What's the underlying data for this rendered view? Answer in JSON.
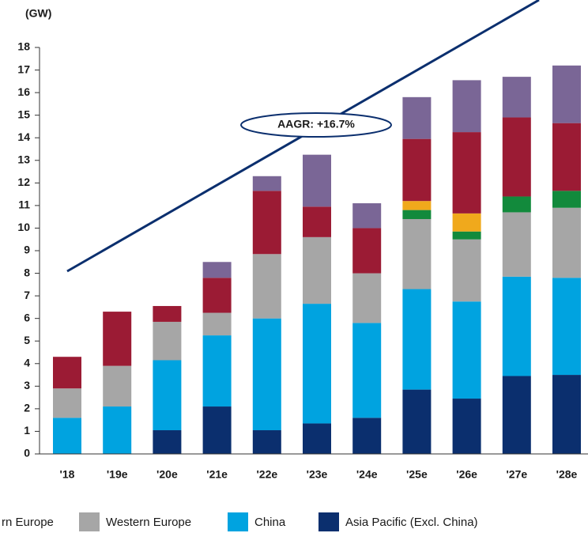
{
  "chart_data": {
    "type": "stacked_bar",
    "y_label": "(GW)",
    "annotation": "AAGR: +16.7%",
    "categories": [
      "'18",
      "'19e",
      "'20e",
      "'21e",
      "'22e",
      "'23e",
      "'24e",
      "'25e",
      "'26e",
      "'27e",
      "'28e"
    ],
    "series": [
      {
        "name": "Asia Pacific (Excl. China)",
        "color": "#0b2f6e",
        "values": [
          0,
          0,
          1.05,
          2.1,
          1.05,
          1.35,
          1.6,
          2.85,
          2.45,
          3.45,
          3.5
        ]
      },
      {
        "name": "China",
        "color": "#00a3e0",
        "values": [
          1.6,
          2.1,
          3.1,
          3.15,
          4.95,
          5.3,
          4.2,
          4.45,
          4.3,
          4.4,
          4.3
        ]
      },
      {
        "name": "Western Europe",
        "color": "#a6a6a6",
        "values": [
          1.3,
          1.8,
          1.7,
          1.0,
          2.85,
          2.95,
          2.2,
          3.1,
          2.75,
          2.85,
          3.1
        ]
      },
      {
        "color": "#128a3c",
        "values": [
          0,
          0,
          0,
          0,
          0,
          0,
          0,
          0.4,
          0.35,
          0.7,
          0.75
        ]
      },
      {
        "color": "#f0a91c",
        "values": [
          0,
          0,
          0,
          0,
          0,
          0,
          0,
          0.4,
          0.8,
          0,
          0
        ]
      },
      {
        "name": "rn Europe",
        "color": "#9b1b34",
        "values": [
          1.4,
          2.4,
          0.7,
          1.55,
          2.8,
          1.35,
          2.0,
          2.75,
          3.6,
          3.5,
          3.0
        ]
      },
      {
        "color": "#7a6696",
        "values": [
          0,
          0,
          0,
          0.7,
          0.65,
          2.3,
          1.1,
          1.85,
          2.3,
          1.8,
          2.55
        ]
      }
    ],
    "ylim": [
      0,
      18
    ],
    "yticks": [
      0,
      1,
      2,
      3,
      4,
      5,
      6,
      7,
      8,
      9,
      10,
      11,
      12,
      13,
      14,
      15,
      16,
      17,
      18
    ]
  }
}
